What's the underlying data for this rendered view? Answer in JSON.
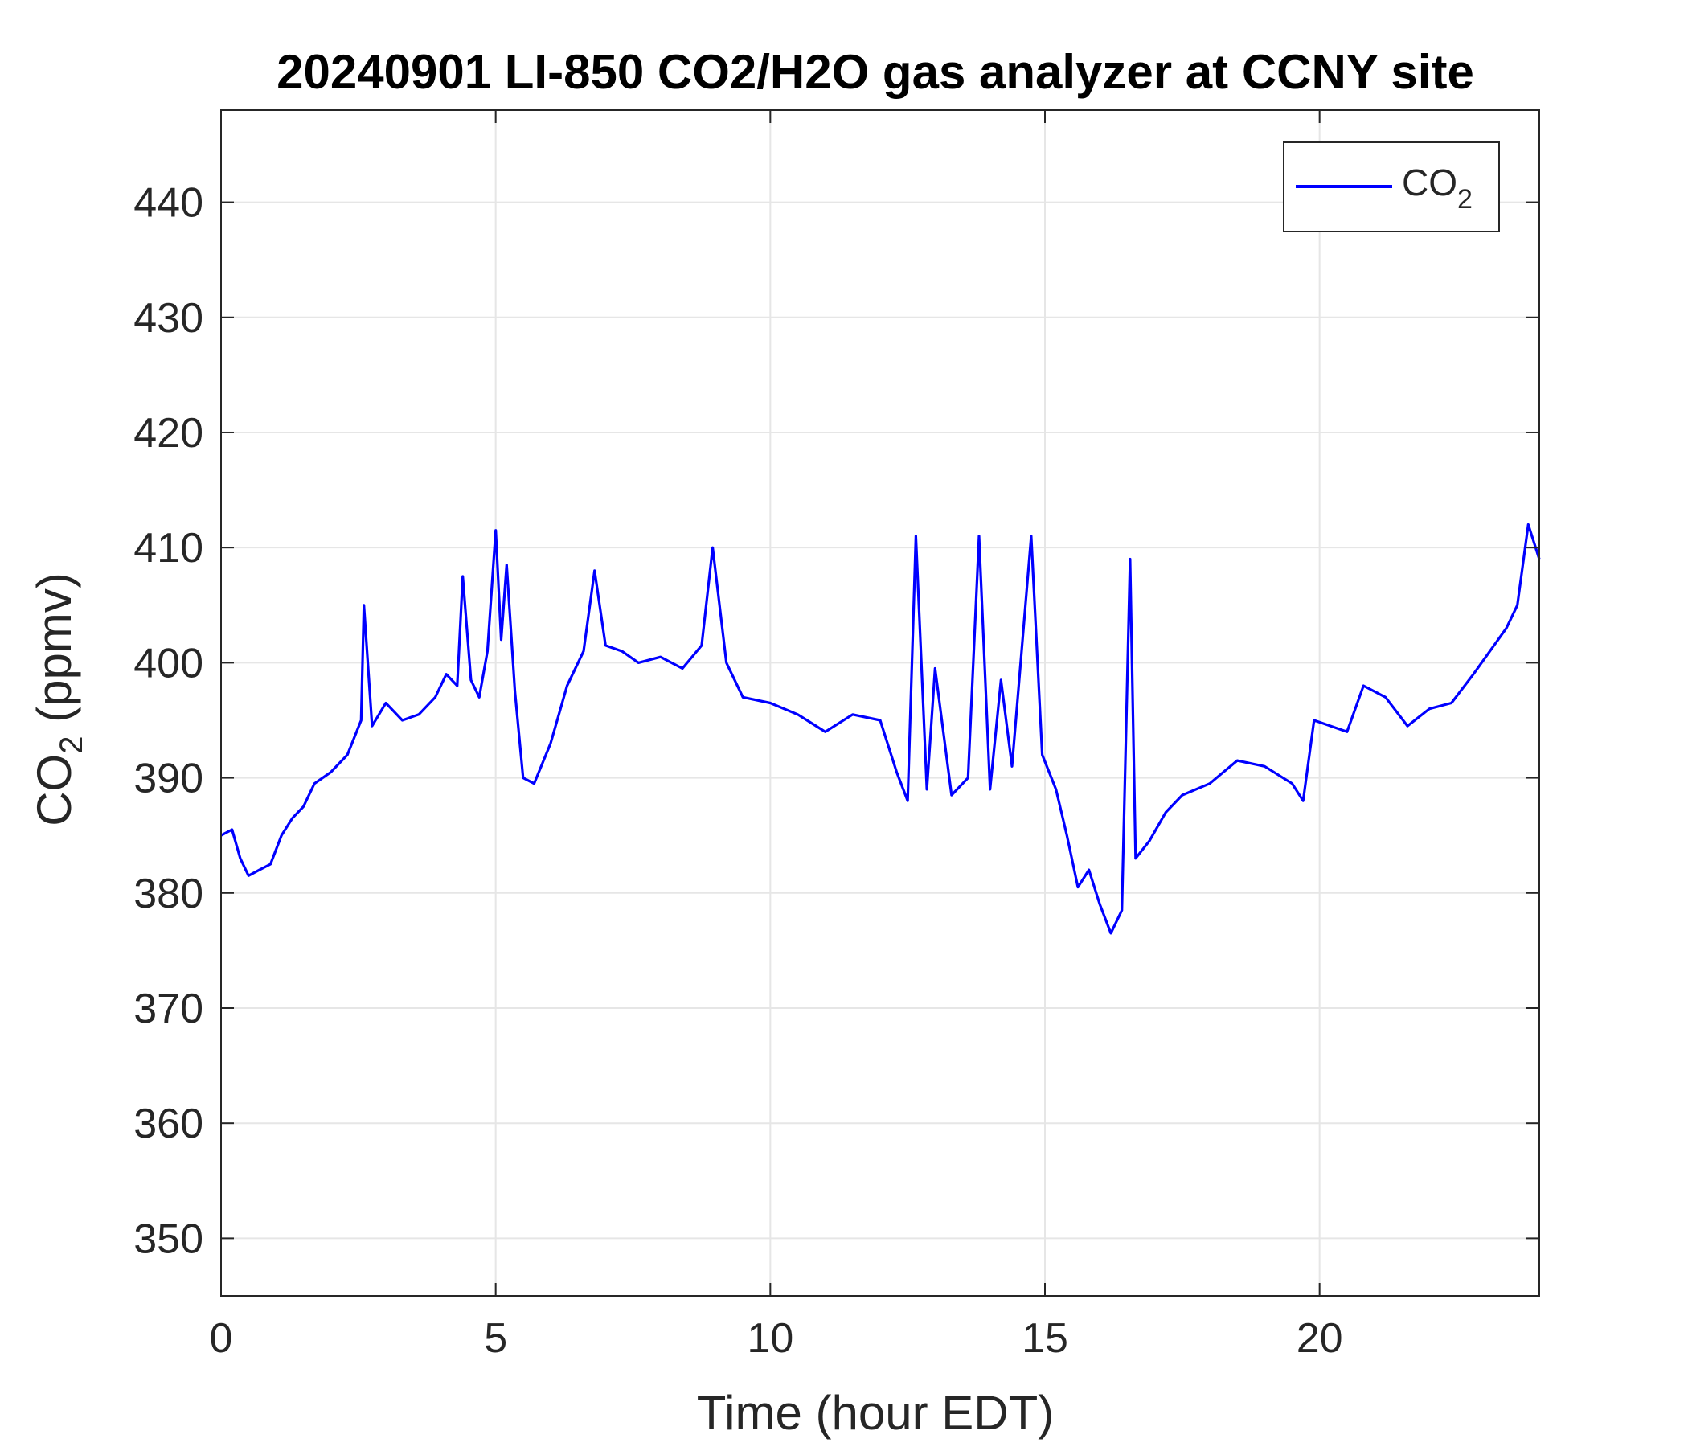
{
  "chart_data": {
    "type": "line",
    "title": "20240901 LI-850 CO2/H2O gas analyzer at CCNY site",
    "xlabel": "Time (hour EDT)",
    "ylabel": {
      "base": "CO",
      "sub": "2",
      "rest": " (ppmv)"
    },
    "xlim": [
      0,
      24
    ],
    "ylim": [
      345,
      448
    ],
    "xticks": [
      0,
      5,
      10,
      15,
      20
    ],
    "xtick_labels": [
      "0",
      "5",
      "10",
      "15",
      "20"
    ],
    "yticks": [
      350,
      360,
      370,
      380,
      390,
      400,
      410,
      420,
      430,
      440
    ],
    "ytick_labels": [
      "350",
      "360",
      "370",
      "380",
      "390",
      "400",
      "410",
      "420",
      "430",
      "440"
    ],
    "grid": true,
    "legend_position": "top-right",
    "series": [
      {
        "name": {
          "base": "CO",
          "sub": "2"
        },
        "color": "#0000ff",
        "x": [
          0,
          0.2,
          0.35,
          0.5,
          0.7,
          0.9,
          1.1,
          1.3,
          1.5,
          1.7,
          2.0,
          2.3,
          2.55,
          2.6,
          2.75,
          3.0,
          3.3,
          3.6,
          3.9,
          4.1,
          4.3,
          4.4,
          4.55,
          4.7,
          4.85,
          5.0,
          5.1,
          5.2,
          5.35,
          5.5,
          5.7,
          6.0,
          6.3,
          6.6,
          6.8,
          7.0,
          7.3,
          7.6,
          8.0,
          8.4,
          8.75,
          8.95,
          9.2,
          9.5,
          10.0,
          10.5,
          11.0,
          11.5,
          12.0,
          12.3,
          12.5,
          12.65,
          12.85,
          13.0,
          13.3,
          13.6,
          13.8,
          14.0,
          14.2,
          14.4,
          14.75,
          14.95,
          15.2,
          15.4,
          15.6,
          15.8,
          16.0,
          16.2,
          16.4,
          16.55,
          16.65,
          16.9,
          17.2,
          17.5,
          18.0,
          18.5,
          19.0,
          19.5,
          19.7,
          19.9,
          20.2,
          20.5,
          20.8,
          21.2,
          21.6,
          22.0,
          22.4,
          22.8,
          23.1,
          23.4,
          23.6,
          23.8,
          24.0
        ],
        "y": [
          385.0,
          385.5,
          383.0,
          381.5,
          382.0,
          382.5,
          385.0,
          386.5,
          387.5,
          389.5,
          390.5,
          392.0,
          395.0,
          405.0,
          394.5,
          396.5,
          395.0,
          395.5,
          397.0,
          399.0,
          398.0,
          407.5,
          398.5,
          397.0,
          401.0,
          411.5,
          402.0,
          408.5,
          397.5,
          390.0,
          389.5,
          393.0,
          398.0,
          401.0,
          408.0,
          401.5,
          401.0,
          400.0,
          400.5,
          399.5,
          401.5,
          410.0,
          400.0,
          397.0,
          396.5,
          395.5,
          394.0,
          395.5,
          395.0,
          390.5,
          388.0,
          411.0,
          389.0,
          399.5,
          388.5,
          390.0,
          411.0,
          389.0,
          398.5,
          391.0,
          411.0,
          392.0,
          389.0,
          385.0,
          380.5,
          382.0,
          379.0,
          376.5,
          378.5,
          409.0,
          383.0,
          384.5,
          387.0,
          388.5,
          389.5,
          391.5,
          391.0,
          389.5,
          388.0,
          395.0,
          394.5,
          394.0,
          398.0,
          397.0,
          394.5,
          396.0,
          396.5,
          399.0,
          401.0,
          403.0,
          405.0,
          412.0,
          409.0
        ]
      }
    ]
  }
}
